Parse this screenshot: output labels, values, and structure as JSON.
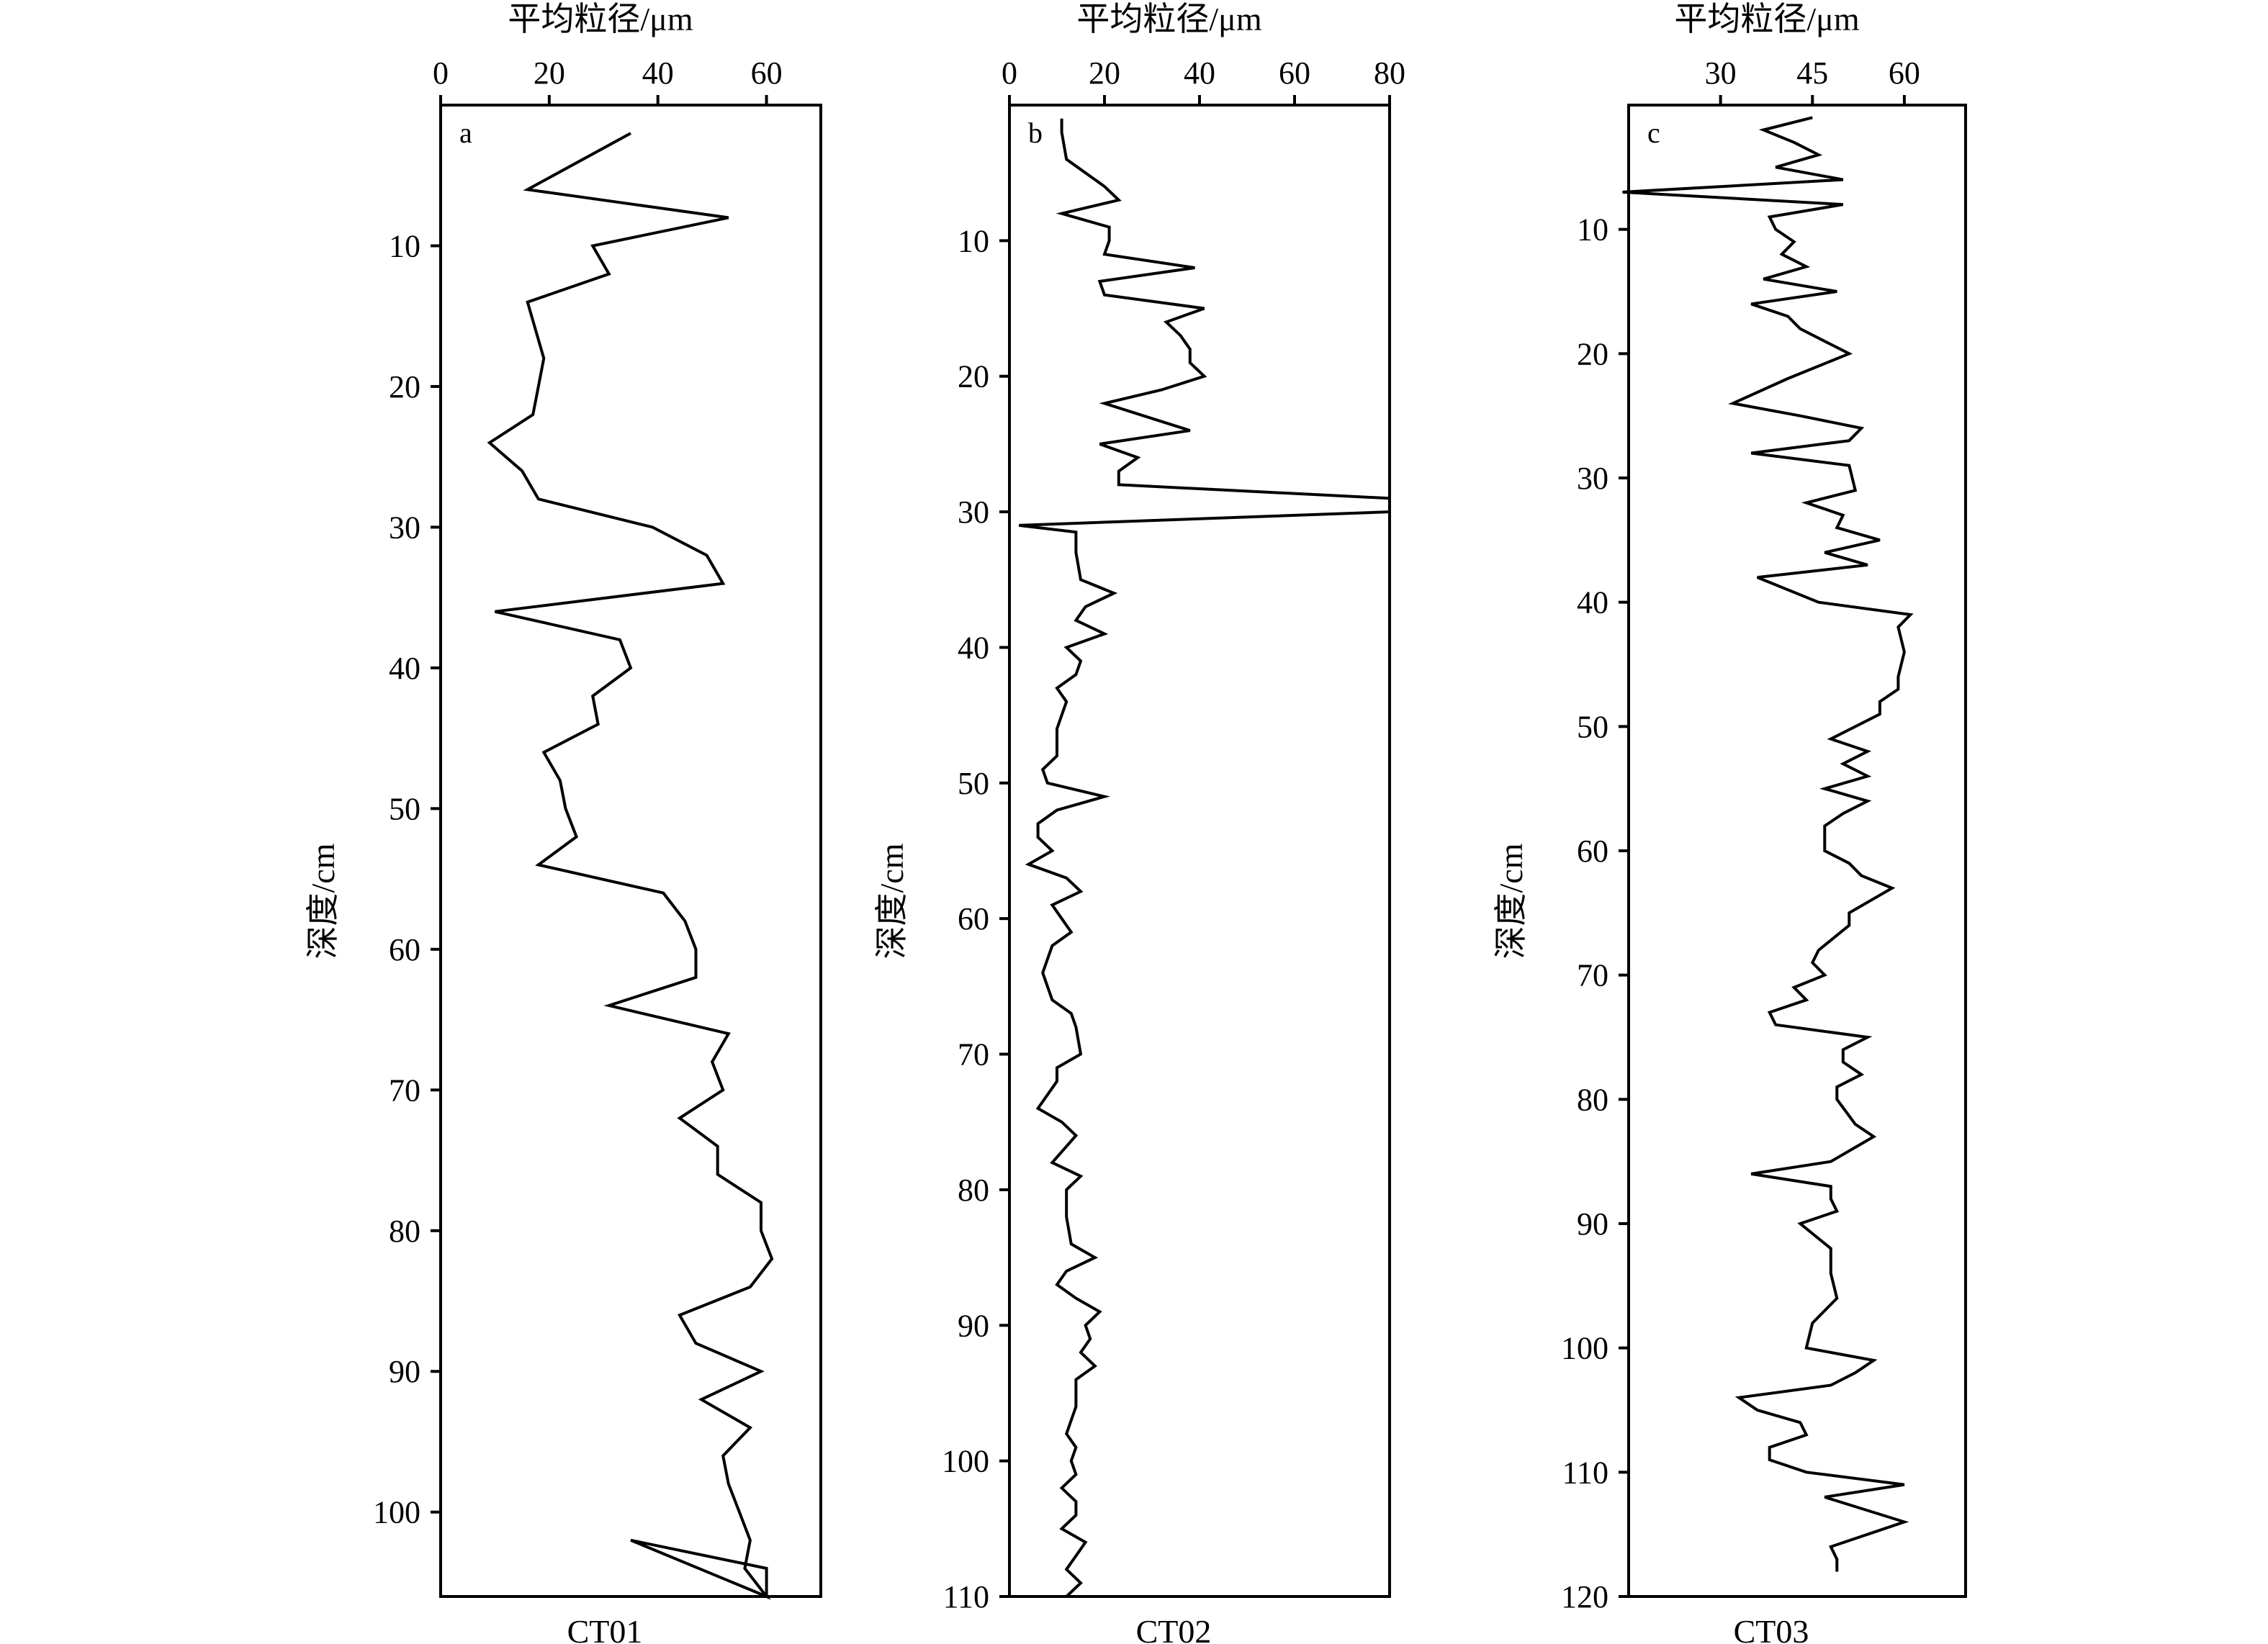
{
  "figure": {
    "background": "#ffffff",
    "line_color": "#000000"
  },
  "chart_data": [
    {
      "type": "line",
      "panel_label": "a",
      "core_label": "CT01",
      "xlabel": "平均粒径/μm",
      "ylabel": "深度/cm",
      "x_axis_position": "top",
      "y_inverted": true,
      "grid": false,
      "xlim": [
        0,
        70
      ],
      "ylim": [
        0,
        106
      ],
      "xticks": [
        0,
        20,
        40,
        60
      ],
      "xtick_labels": [
        "0",
        "20",
        "40",
        "60"
      ],
      "yticks": [
        10,
        20,
        30,
        40,
        50,
        60,
        70,
        80,
        90,
        100
      ],
      "ytick_labels": [
        "10",
        "20",
        "30",
        "40",
        "50",
        "60",
        "70",
        "80",
        "90",
        "100"
      ],
      "series": [
        {
          "x": [
            35,
            16,
            53,
            28,
            31,
            16,
            19,
            18,
            17,
            9,
            15,
            18,
            39,
            49,
            52,
            10,
            33,
            35,
            28,
            29,
            19,
            22,
            23,
            25,
            18,
            41,
            45,
            47,
            47,
            31,
            53,
            50,
            52,
            44,
            51,
            51,
            59,
            59,
            61,
            57,
            44,
            47,
            59,
            48,
            57,
            52,
            53,
            55,
            57,
            56,
            60,
            35,
            60,
            60
          ],
          "y": [
            2,
            6,
            8,
            10,
            12,
            14,
            18,
            20,
            22,
            24,
            26,
            28,
            30,
            32,
            34,
            36,
            38,
            40,
            42,
            44,
            46,
            48,
            50,
            52,
            54,
            56,
            58,
            60,
            62,
            64,
            66,
            68,
            70,
            72,
            74,
            76,
            78,
            80,
            82,
            84,
            86,
            88,
            90,
            92,
            94,
            96,
            98,
            100,
            102,
            104,
            106,
            102,
            104,
            106
          ]
        }
      ]
    },
    {
      "type": "line",
      "panel_label": "b",
      "core_label": "CT02",
      "xlabel": "平均粒径/μm",
      "ylabel": "深度/cm",
      "x_axis_position": "top",
      "y_inverted": true,
      "grid": false,
      "xlim": [
        0,
        80
      ],
      "ylim": [
        0,
        110
      ],
      "xticks": [
        0,
        20,
        40,
        60,
        80
      ],
      "xtick_labels": [
        "0",
        "20",
        "40",
        "60",
        "80"
      ],
      "yticks": [
        10,
        20,
        30,
        40,
        50,
        60,
        70,
        80,
        90,
        100,
        110
      ],
      "ytick_labels": [
        "10",
        "20",
        "30",
        "40",
        "50",
        "60",
        "70",
        "80",
        "90",
        "100",
        "110"
      ],
      "series": [
        {
          "x": [
            11,
            11,
            12,
            20,
            23,
            11,
            21,
            21,
            20,
            39,
            19,
            20,
            41,
            33,
            36,
            38,
            38,
            41,
            32,
            20,
            38,
            19,
            27,
            23,
            23,
            80,
            80,
            2,
            14,
            14,
            15,
            22,
            16,
            14,
            20,
            12,
            15,
            14,
            10,
            12,
            10,
            10,
            7,
            8,
            20,
            10,
            6,
            6,
            9,
            4,
            12,
            15,
            9,
            11,
            13,
            9,
            7,
            9,
            13,
            14,
            15,
            10,
            10,
            6,
            11,
            14,
            9,
            15,
            12,
            12,
            13,
            18,
            12,
            10,
            14,
            19,
            16,
            17,
            15,
            18,
            14,
            14,
            14,
            13,
            12,
            14,
            13,
            14,
            11,
            14,
            14,
            11,
            16,
            14,
            12,
            15,
            12,
            14,
            16,
            18,
            14,
            10,
            17,
            26,
            32
          ],
          "y": [
            1,
            2,
            4,
            6,
            7,
            8,
            9,
            10,
            11,
            12,
            13,
            14,
            15,
            16,
            17,
            18,
            19,
            20,
            21,
            22,
            24,
            25,
            26,
            27,
            28,
            29,
            30,
            31,
            31.5,
            33,
            35,
            36,
            37,
            38,
            39,
            40,
            41,
            42,
            43,
            44,
            46,
            48,
            49,
            50,
            51,
            52,
            53,
            54,
            55,
            56,
            57,
            58,
            59,
            60,
            61,
            62,
            64,
            66,
            67,
            68,
            70,
            71,
            72,
            74,
            75,
            76,
            78,
            79,
            80,
            82,
            84,
            85,
            86,
            87,
            88,
            89,
            90,
            91,
            92,
            93,
            94,
            95,
            96,
            97,
            98,
            99,
            100,
            101,
            102,
            103,
            104,
            105,
            106,
            107,
            108,
            109,
            110,
            110,
            110,
            110,
            110,
            110,
            110,
            110,
            110
          ]
        }
      ]
    },
    {
      "type": "line",
      "panel_label": "c",
      "core_label": "CT03",
      "xlabel": "平均粒径/μm",
      "ylabel": "深度/cm",
      "x_axis_position": "top",
      "y_inverted": true,
      "grid": false,
      "xlim": [
        15,
        70
      ],
      "ylim": [
        0,
        120
      ],
      "xticks": [
        30,
        45,
        60
      ],
      "xtick_labels": [
        "30",
        "45",
        "60"
      ],
      "yticks": [
        10,
        20,
        30,
        40,
        50,
        60,
        70,
        80,
        90,
        100,
        110,
        120
      ],
      "ytick_labels": [
        "10",
        "20",
        "30",
        "40",
        "50",
        "60",
        "70",
        "80",
        "90",
        "100",
        "110",
        "120"
      ],
      "series": [
        {
          "x": [
            45,
            37,
            42,
            46,
            39,
            50,
            14,
            50,
            38,
            39,
            42,
            40,
            44,
            37,
            49,
            35,
            41,
            43,
            51,
            41,
            32,
            43,
            53,
            51,
            35,
            51,
            52,
            44,
            50,
            49,
            56,
            47,
            54,
            36,
            46,
            61,
            59,
            60,
            59,
            59,
            56,
            56,
            48,
            54,
            50,
            54,
            47,
            54,
            50,
            47,
            47,
            51,
            53,
            58,
            51,
            51,
            46,
            45,
            47,
            42,
            44,
            38,
            39,
            54,
            50,
            50,
            53,
            49,
            49,
            52,
            55,
            48,
            35,
            48,
            48,
            49,
            43,
            48,
            48,
            49,
            45,
            44,
            55,
            52,
            48,
            33,
            36,
            43,
            44,
            38,
            38,
            44,
            60,
            47,
            60,
            48,
            49,
            49
          ],
          "y": [
            1,
            2,
            3,
            4,
            5,
            6,
            7,
            8,
            9,
            10,
            11,
            12,
            13,
            14,
            15,
            16,
            17,
            18,
            20,
            22,
            24,
            25,
            26,
            27,
            28,
            29,
            31,
            32,
            33,
            34,
            35,
            36,
            37,
            38,
            40,
            41,
            42,
            44,
            46,
            47,
            48,
            49,
            51,
            52,
            53,
            54,
            55,
            56,
            57,
            58,
            60,
            61,
            62,
            63,
            65,
            66,
            68,
            69,
            70,
            71,
            72,
            73,
            74,
            75,
            76,
            77,
            78,
            79,
            80,
            82,
            83,
            85,
            86,
            87,
            88,
            89,
            90,
            92,
            94,
            96,
            98,
            100,
            101,
            102,
            103,
            104,
            105,
            106,
            107,
            108,
            109,
            110,
            111,
            112,
            114,
            116,
            117,
            118
          ]
        }
      ]
    }
  ]
}
